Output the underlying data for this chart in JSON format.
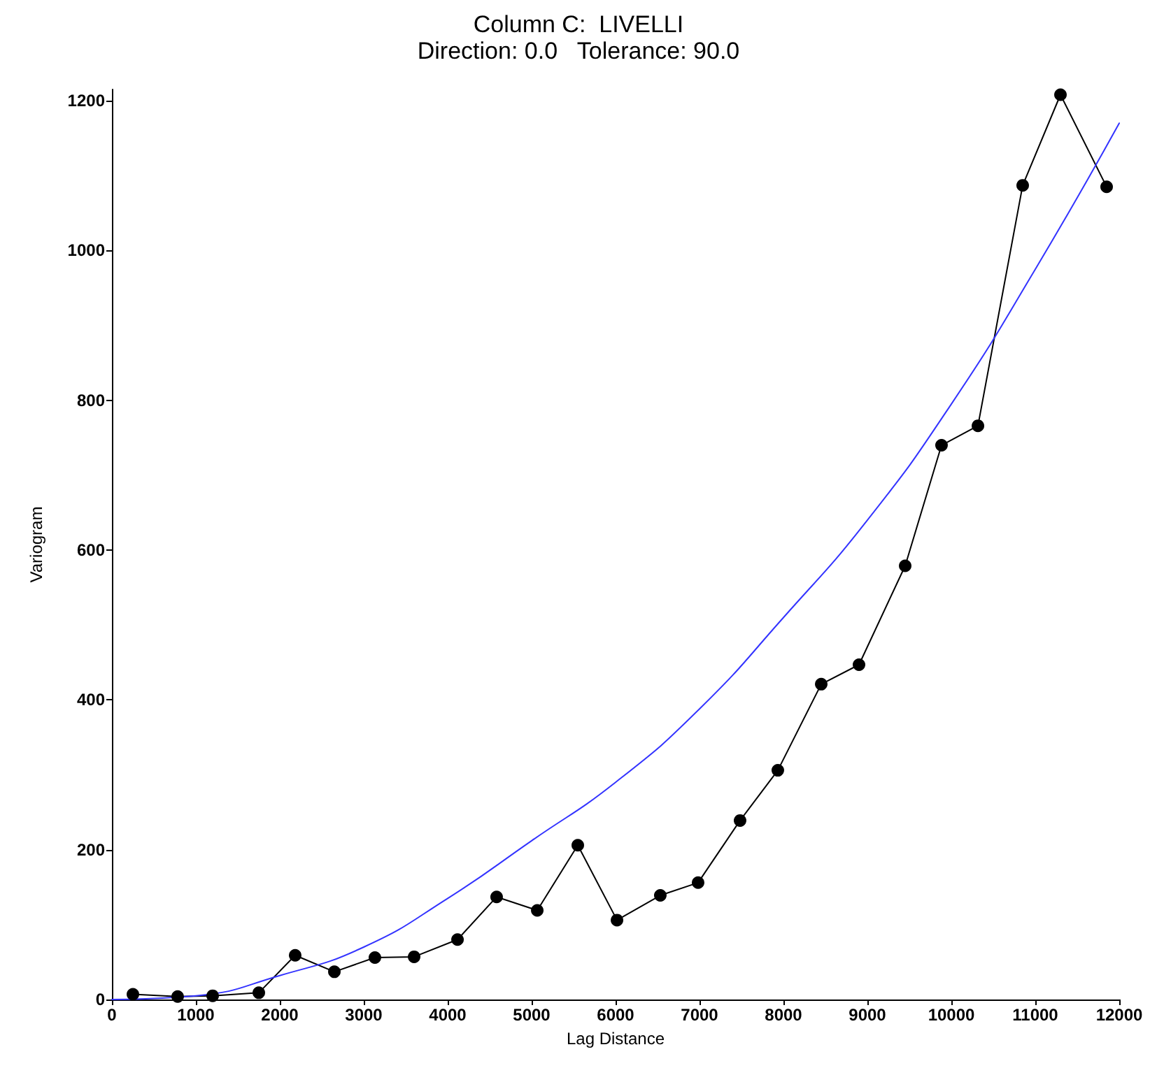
{
  "chart_data": {
    "type": "line",
    "title": "Column C:  LIVELLI",
    "subtitle": "Direction: 0.0   Tolerance: 90.0",
    "xlabel": "Lag Distance",
    "ylabel": "Variogram",
    "xlim": [
      0,
      12000
    ],
    "xticks": [
      0,
      1000,
      2000,
      3000,
      4000,
      5000,
      6000,
      7000,
      8000,
      9000,
      10000,
      11000,
      12000
    ],
    "ylim": [
      0,
      1215
    ],
    "yticks": [
      0,
      200,
      400,
      600,
      800,
      1000,
      1200
    ],
    "grid": false,
    "series": [
      {
        "color": "#000000",
        "marker": "circle",
        "x": [
          250,
          783,
          1200,
          1750,
          2183,
          2650,
          3133,
          3600,
          4117,
          4583,
          5067,
          5550,
          6017,
          6533,
          6983,
          7483,
          7933,
          8450,
          8900,
          9450,
          9883,
          10317,
          10850,
          11300,
          11850
        ],
        "values": [
          7,
          4,
          5,
          9,
          59,
          37,
          56,
          57,
          80,
          137,
          119,
          206,
          106,
          139,
          156,
          239,
          306,
          421,
          447,
          579,
          740,
          766,
          1087,
          1208,
          1085
        ]
      },
      {
        "color": "#3333ff",
        "marker": "none",
        "x": [
          0,
          1000,
          2000,
          3000,
          4000,
          5000,
          6000,
          7000,
          8000,
          9000,
          10000,
          11000,
          12000
        ],
        "values": [
          0,
          5,
          32,
          70,
          135,
          212,
          290,
          388,
          510,
          640,
          795,
          975,
          1170
        ]
      }
    ]
  }
}
